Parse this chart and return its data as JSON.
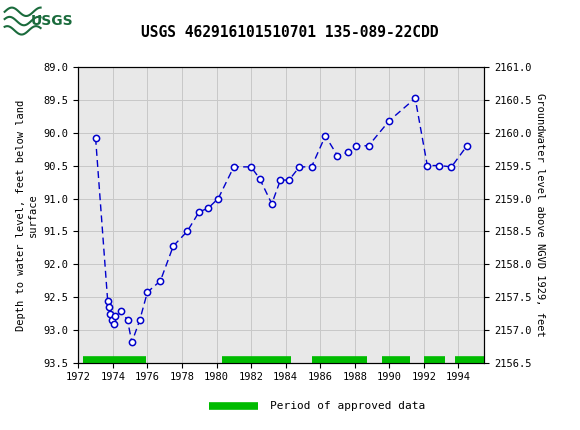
{
  "title": "USGS 462916101510701 135-089-22CDD",
  "ylabel_left": "Depth to water level, feet below land\nsurface",
  "ylabel_right": "Groundwater level above NGVD 1929, feet",
  "ylim_left": [
    93.5,
    89.0
  ],
  "ylim_right": [
    2156.5,
    2161.0
  ],
  "xlim": [
    1972,
    1995.5
  ],
  "xticks": [
    1972,
    1974,
    1976,
    1978,
    1980,
    1982,
    1984,
    1986,
    1988,
    1990,
    1992,
    1994
  ],
  "yticks_left": [
    89.0,
    89.5,
    90.0,
    90.5,
    91.0,
    91.5,
    92.0,
    92.5,
    93.0,
    93.5
  ],
  "yticks_right": [
    2156.5,
    2157.0,
    2157.5,
    2158.0,
    2158.5,
    2159.0,
    2159.5,
    2160.0,
    2160.5,
    2161.0
  ],
  "data_x": [
    1973.0,
    1973.7,
    1973.75,
    1973.85,
    1973.95,
    1974.05,
    1974.15,
    1974.5,
    1974.85,
    1975.1,
    1975.55,
    1976.0,
    1976.75,
    1977.5,
    1978.3,
    1979.0,
    1979.5,
    1980.1,
    1981.0,
    1982.0,
    1982.5,
    1983.2,
    1983.7,
    1984.2,
    1984.8,
    1985.5,
    1986.3,
    1987.0,
    1987.6,
    1988.1,
    1988.8,
    1990.0,
    1991.5,
    1992.2,
    1992.9,
    1993.6,
    1994.5
  ],
  "data_y": [
    90.08,
    92.55,
    92.65,
    92.75,
    92.85,
    92.9,
    92.78,
    92.7,
    92.85,
    93.18,
    92.85,
    92.42,
    92.25,
    91.72,
    91.5,
    91.2,
    91.15,
    91.0,
    90.52,
    90.52,
    90.7,
    91.08,
    90.72,
    90.72,
    90.52,
    90.52,
    90.05,
    90.35,
    90.3,
    90.2,
    90.2,
    89.82,
    89.48,
    90.5,
    90.5,
    90.52,
    90.2
  ],
  "line_color": "#0000cc",
  "marker_facecolor": "white",
  "marker_edgecolor": "#0000cc",
  "plot_bg_color": "#e8e8e8",
  "header_color": "#1a6b3c",
  "grid_color": "#c8c8c8",
  "approved_periods": [
    [
      1972.3,
      1975.9
    ],
    [
      1980.3,
      1984.3
    ],
    [
      1985.5,
      1988.7
    ],
    [
      1989.6,
      1991.2
    ],
    [
      1992.0,
      1993.2
    ],
    [
      1993.8,
      1995.5
    ]
  ],
  "approved_color": "#00bb00",
  "approved_y": 93.45,
  "legend_label": "Period of approved data",
  "fig_width": 5.8,
  "fig_height": 4.3,
  "dpi": 100
}
